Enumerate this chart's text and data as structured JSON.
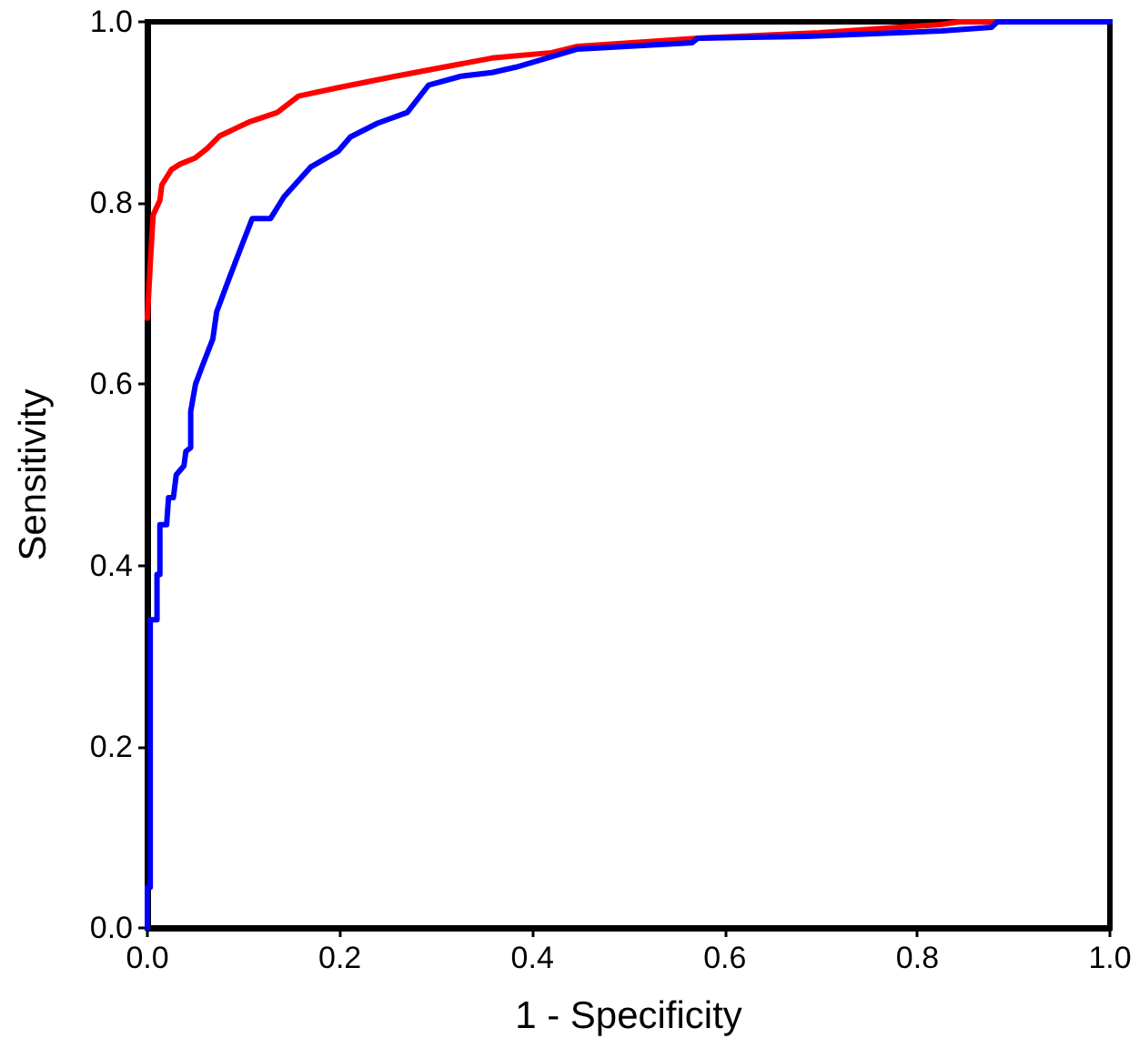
{
  "chart_data": {
    "type": "line",
    "xlabel": "1 - Specificity",
    "ylabel": "Sensitivity",
    "xlim": [
      0,
      1
    ],
    "ylim": [
      0,
      1
    ],
    "xticks": [
      {
        "value": 0,
        "label": "0.0"
      },
      0.2,
      0.4,
      0.6,
      0.8,
      {
        "value": 1,
        "label": "1.0"
      }
    ],
    "yticks": [
      {
        "value": 0,
        "label": "0.0"
      },
      0.2,
      0.4,
      0.6,
      0.8,
      {
        "value": 1,
        "label": "1.0"
      }
    ],
    "grid": false,
    "marker": "none",
    "line_style": "solid",
    "series": [
      {
        "color": "#ff0000",
        "x": [
          0,
          0.003,
          0.006,
          0.013,
          0.015,
          0.025,
          0.034,
          0.05,
          0.062,
          0.075,
          0.107,
          0.135,
          0.157,
          0.201,
          0.258,
          0.308,
          0.358,
          0.42,
          0.447,
          0.572,
          0.698,
          0.824,
          0.843,
          0.88
        ],
        "values": [
          0.673,
          0.733,
          0.787,
          0.803,
          0.82,
          0.837,
          0.843,
          0.85,
          0.86,
          0.874,
          0.89,
          0.9,
          0.918,
          0.928,
          0.94,
          0.95,
          0.96,
          0.966,
          0.973,
          0.982,
          0.988,
          0.997,
          1,
          1
        ]
      },
      {
        "color": "#0000ff",
        "x": [
          0,
          0,
          0.003,
          0.003,
          0.01,
          0.01,
          0.013,
          0.013,
          0.02,
          0.022,
          0.027,
          0.03,
          0.038,
          0.04,
          0.045,
          0.045,
          0.05,
          0.057,
          0.068,
          0.072,
          0.085,
          0.098,
          0.109,
          0.128,
          0.142,
          0.17,
          0.198,
          0.211,
          0.239,
          0.27,
          0.292,
          0.326,
          0.358,
          0.383,
          0.447,
          0.566,
          0.572,
          0.685,
          0.825,
          0.877,
          0.883,
          1
        ],
        "values": [
          0,
          0.045,
          0.045,
          0.34,
          0.34,
          0.39,
          0.39,
          0.445,
          0.445,
          0.475,
          0.475,
          0.5,
          0.51,
          0.526,
          0.53,
          0.57,
          0.6,
          0.62,
          0.65,
          0.68,
          0.717,
          0.753,
          0.783,
          0.783,
          0.807,
          0.84,
          0.857,
          0.873,
          0.888,
          0.9,
          0.93,
          0.94,
          0.944,
          0.95,
          0.97,
          0.977,
          0.982,
          0.984,
          0.99,
          0.994,
          1,
          1
        ]
      }
    ]
  }
}
